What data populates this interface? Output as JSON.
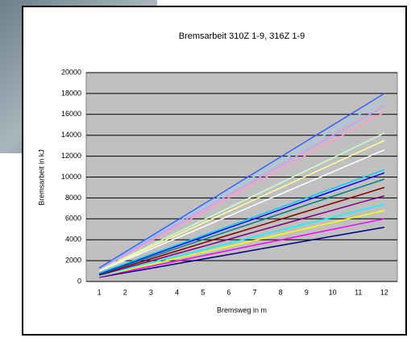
{
  "chart_data": {
    "type": "line",
    "title": "Bremsarbeit 310Z 1-9, 316Z 1-9",
    "x_label": "Bremsweg in m",
    "y_label": "Bremsarbeit in kJ",
    "categories": [
      "1",
      "2",
      "3",
      "4",
      "5",
      "6",
      "7",
      "8",
      "9",
      "10",
      "11",
      "12"
    ],
    "ylim": [
      0,
      20000
    ],
    "yticks": [
      0,
      2000,
      4000,
      6000,
      8000,
      10000,
      12000,
      14000,
      16000,
      18000,
      20000
    ],
    "grid": true,
    "series": [
      {
        "color": "#000080",
        "values": [
          400,
          840,
          1270,
          1710,
          2150,
          2580,
          3020,
          3450,
          3890,
          4330,
          4760,
          5200
        ]
      },
      {
        "color": "#ff00ff",
        "values": [
          450,
          950,
          1460,
          1960,
          2470,
          2970,
          3480,
          3980,
          4490,
          4990,
          5500,
          6000
        ]
      },
      {
        "color": "#ffff00",
        "values": [
          500,
          1070,
          1650,
          2220,
          2790,
          3360,
          3940,
          4510,
          5080,
          5650,
          6230,
          6800
        ]
      },
      {
        "color": "#00ffff",
        "values": [
          550,
          1170,
          1800,
          2420,
          3040,
          3660,
          4290,
          4910,
          5530,
          6150,
          6780,
          7400
        ]
      },
      {
        "color": "#800080",
        "values": [
          600,
          1290,
          1980,
          2670,
          3360,
          4050,
          4750,
          5440,
          6130,
          6820,
          7510,
          8200
        ]
      },
      {
        "color": "#800000",
        "values": [
          650,
          1410,
          2170,
          2930,
          3690,
          4450,
          5200,
          5960,
          6720,
          7480,
          8240,
          9000
        ]
      },
      {
        "color": "#008080",
        "values": [
          700,
          1530,
          2350,
          3180,
          4010,
          4840,
          5660,
          6490,
          7320,
          8150,
          8970,
          9800
        ]
      },
      {
        "color": "#0000ff",
        "values": [
          750,
          1630,
          2510,
          3380,
          4260,
          5140,
          6010,
          6890,
          7770,
          8650,
          9520,
          10400
        ]
      },
      {
        "color": "#00ccff",
        "values": [
          800,
          1700,
          2600,
          3500,
          4400,
          5300,
          6200,
          7100,
          8000,
          8900,
          9800,
          10700
        ]
      },
      {
        "color": "#ffffff",
        "values": [
          1000,
          2050,
          3110,
          4160,
          5220,
          6270,
          7330,
          8380,
          9440,
          10490,
          11550,
          12600
        ]
      },
      {
        "color": "#ffff99",
        "values": [
          1050,
          2180,
          3310,
          4450,
          5580,
          6710,
          7840,
          8970,
          10100,
          11240,
          12370,
          13500
        ]
      },
      {
        "color": "#ccffcc",
        "values": [
          1100,
          2290,
          3480,
          4670,
          5860,
          7050,
          8250,
          9440,
          10630,
          11820,
          13010,
          14200
        ]
      },
      {
        "color": "#ff99cc",
        "values": [
          1150,
          2520,
          3890,
          5250,
          6620,
          7990,
          9360,
          10730,
          12100,
          13460,
          14830,
          16200
        ]
      },
      {
        "color": "#cc99ff",
        "values": [
          1200,
          2620,
          4040,
          5450,
          6870,
          8290,
          9710,
          11130,
          12550,
          13960,
          15380,
          16800
        ]
      },
      {
        "color": "#99ccff",
        "values": [
          1250,
          2720,
          4190,
          5650,
          7120,
          8590,
          10060,
          11530,
          13000,
          14460,
          15930,
          17400
        ]
      },
      {
        "color": "#3366ff",
        "values": [
          1300,
          2820,
          4340,
          5850,
          7370,
          8890,
          10410,
          11930,
          13450,
          14960,
          16480,
          18000
        ]
      }
    ]
  }
}
